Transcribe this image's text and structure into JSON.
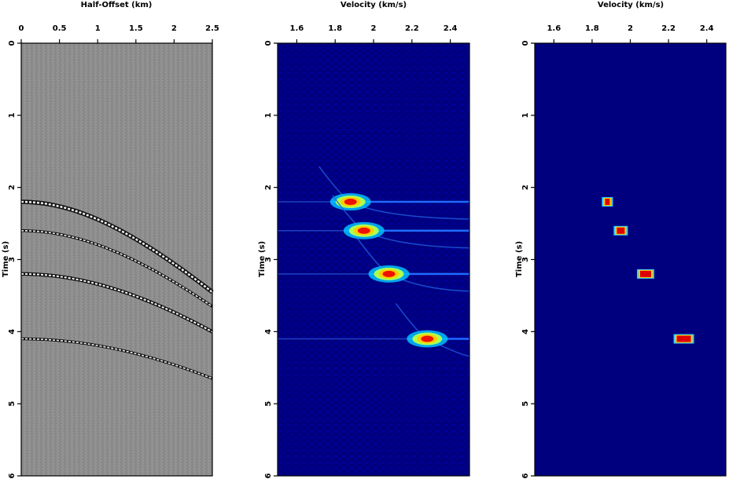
{
  "panels": [
    {
      "id": "gather",
      "top_label": "Half-Offset (km)",
      "left_label": "Time (s)",
      "x_ticks": [
        "0",
        "0.5",
        "1",
        "1.5",
        "2",
        "2.5"
      ],
      "y_ticks": [
        "0",
        "1",
        "2",
        "3",
        "4",
        "5",
        "6"
      ],
      "xlim": [
        0,
        2.5
      ],
      "ylim": [
        0,
        6
      ],
      "background": "#8d8d8d",
      "reflection_t0": [
        2.2,
        2.6,
        3.2,
        4.1
      ],
      "reflection_velocity": [
        1.88,
        1.95,
        2.08,
        2.28
      ]
    },
    {
      "id": "semblance",
      "top_label": "Velocity (km/s)",
      "left_label": "Time (s)",
      "x_ticks": [
        "1.6",
        "1.8",
        "2",
        "2.2",
        "2.4"
      ],
      "y_ticks": [
        "0",
        "1",
        "2",
        "3",
        "4",
        "5",
        "6"
      ],
      "xlim": [
        1.5,
        2.5
      ],
      "ylim": [
        0,
        6
      ],
      "background": "#00007f"
    },
    {
      "id": "sparse",
      "top_label": "Velocity (km/s)",
      "left_label": "Time (s)",
      "x_ticks": [
        "1.6",
        "1.8",
        "2",
        "2.2",
        "2.4"
      ],
      "y_ticks": [
        "0",
        "1",
        "2",
        "3",
        "4",
        "5",
        "6"
      ],
      "xlim": [
        1.5,
        2.5
      ],
      "ylim": [
        0,
        6
      ],
      "background": "#00007f"
    }
  ],
  "chart_data": {
    "type": "heatmap",
    "events": [
      {
        "time": 2.2,
        "velocity": 1.88
      },
      {
        "time": 2.6,
        "velocity": 1.95
      },
      {
        "time": 3.2,
        "velocity": 2.08
      },
      {
        "time": 4.1,
        "velocity": 2.28
      }
    ]
  }
}
